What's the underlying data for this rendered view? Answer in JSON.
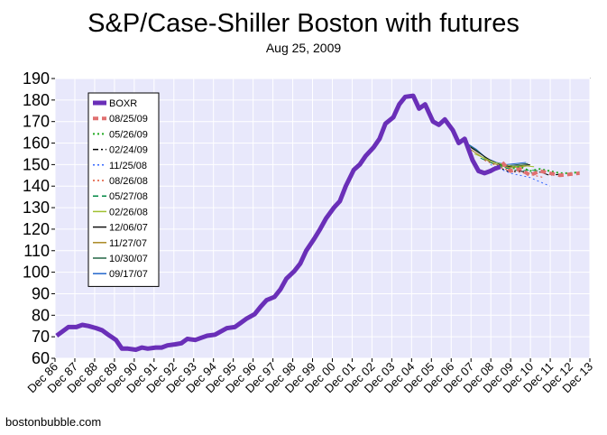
{
  "title": "S&P/Case-Shiller Boston with futures",
  "subtitle": "Aug 25, 2009",
  "source": "bostonbubble.com",
  "chart_data": {
    "type": "line",
    "title": "S&P/Case-Shiller Boston with futures",
    "subtitle": "Aug 25, 2009",
    "xlabel": "",
    "ylabel": "",
    "xlim": [
      1986.92,
      2013.92
    ],
    "ylim": [
      60,
      190
    ],
    "y_ticks": [
      60,
      70,
      80,
      90,
      100,
      110,
      120,
      130,
      140,
      150,
      160,
      170,
      180,
      190
    ],
    "x_ticks": [
      {
        "label": "Dec 86",
        "x": 1986.92
      },
      {
        "label": "Dec 87",
        "x": 1987.92
      },
      {
        "label": "Dec 88",
        "x": 1988.92
      },
      {
        "label": "Dec 89",
        "x": 1989.92
      },
      {
        "label": "Dec 90",
        "x": 1990.92
      },
      {
        "label": "Dec 91",
        "x": 1991.92
      },
      {
        "label": "Dec 92",
        "x": 1992.92
      },
      {
        "label": "Dec 93",
        "x": 1993.92
      },
      {
        "label": "Dec 94",
        "x": 1994.92
      },
      {
        "label": "Dec 95",
        "x": 1995.92
      },
      {
        "label": "Dec 96",
        "x": 1996.92
      },
      {
        "label": "Dec 97",
        "x": 1997.92
      },
      {
        "label": "Dec 98",
        "x": 1998.92
      },
      {
        "label": "Dec 99",
        "x": 1999.92
      },
      {
        "label": "Dec 00",
        "x": 2000.92
      },
      {
        "label": "Dec 01",
        "x": 2001.92
      },
      {
        "label": "Dec 02",
        "x": 2002.92
      },
      {
        "label": "Dec 03",
        "x": 2003.92
      },
      {
        "label": "Dec 04",
        "x": 2004.92
      },
      {
        "label": "Dec 05",
        "x": 2005.92
      },
      {
        "label": "Dec 06",
        "x": 2006.92
      },
      {
        "label": "Dec 07",
        "x": 2007.92
      },
      {
        "label": "Dec 08",
        "x": 2008.92
      },
      {
        "label": "Dec 09",
        "x": 2009.92
      },
      {
        "label": "Dec 10",
        "x": 2010.92
      },
      {
        "label": "Dec 11",
        "x": 2011.92
      },
      {
        "label": "Dec 12",
        "x": 2012.92
      },
      {
        "label": "Dec 13",
        "x": 2013.92
      }
    ],
    "grid": true,
    "legend_position": "top-left",
    "series": [
      {
        "name": "BOXR",
        "color": "#6a2fb8",
        "style": "solid",
        "width": 5,
        "x": [
          1987.0,
          1987.3,
          1987.6,
          1988.0,
          1988.3,
          1988.6,
          1989.0,
          1989.3,
          1989.6,
          1990.0,
          1990.3,
          1990.6,
          1991.0,
          1991.3,
          1991.6,
          1992.0,
          1992.3,
          1992.6,
          1993.0,
          1993.3,
          1993.6,
          1994.0,
          1994.3,
          1994.6,
          1995.0,
          1995.3,
          1995.6,
          1996.0,
          1996.3,
          1996.6,
          1997.0,
          1997.3,
          1997.6,
          1998.0,
          1998.3,
          1998.6,
          1999.0,
          1999.3,
          1999.6,
          2000.0,
          2000.3,
          2000.6,
          2001.0,
          2001.3,
          2001.6,
          2002.0,
          2002.3,
          2002.6,
          2003.0,
          2003.3,
          2003.6,
          2004.0,
          2004.3,
          2004.6,
          2005.0,
          2005.3,
          2005.6,
          2006.0,
          2006.3,
          2006.6,
          2007.0,
          2007.3,
          2007.6,
          2008.0,
          2008.3,
          2008.6,
          2008.9,
          2009.1,
          2009.4
        ],
        "y": [
          70.5,
          72.5,
          74.5,
          74.5,
          75.5,
          75.0,
          74.0,
          73.0,
          71.0,
          68.5,
          64.5,
          64.5,
          64.0,
          65.0,
          64.5,
          65.0,
          65.0,
          66.0,
          66.5,
          67.0,
          69.0,
          68.5,
          69.5,
          70.5,
          71.0,
          72.5,
          74.0,
          74.5,
          76.5,
          78.5,
          80.5,
          84.0,
          87.0,
          88.5,
          92.0,
          97.0,
          100.5,
          104.0,
          110.0,
          115.5,
          120.0,
          125.0,
          130.0,
          133.0,
          140.0,
          147.5,
          150.0,
          154.0,
          158.0,
          162.0,
          169.0,
          172.0,
          178.0,
          181.5,
          182.0,
          176.0,
          178.0,
          170.0,
          168.5,
          171.0,
          166.0,
          160.0,
          162.0,
          152.0,
          147.0,
          146.0,
          147.0,
          148.0,
          149.0
        ]
      },
      {
        "name": "08/25/09",
        "color": "#e07070",
        "style": "dashed",
        "width": 4,
        "x": [
          2009.5,
          2009.9,
          2010.4,
          2010.9,
          2011.4,
          2011.9,
          2012.4,
          2012.9,
          2013.4
        ],
        "y": [
          151.0,
          147.0,
          148.0,
          145.0,
          147.0,
          146.0,
          145.0,
          145.5,
          146.0
        ]
      },
      {
        "name": "05/26/09",
        "color": "#22aa22",
        "style": "dotted",
        "width": 2,
        "x": [
          2009.4,
          2009.9,
          2010.4,
          2010.9,
          2011.4,
          2011.9,
          2012.4,
          2012.9,
          2013.4
        ],
        "y": [
          150.0,
          148.0,
          149.0,
          147.0,
          148.0,
          147.0,
          146.0,
          146.0,
          146.5
        ]
      },
      {
        "name": "02/24/09",
        "color": "#000000",
        "style": "dash-dot",
        "width": 1,
        "x": [
          2009.1,
          2009.5,
          2009.9,
          2010.4,
          2010.9,
          2011.4,
          2011.9,
          2012.4
        ],
        "y": [
          149.0,
          148.0,
          146.5,
          147.0,
          146.0,
          146.5,
          145.0,
          145.5
        ]
      },
      {
        "name": "11/25/08",
        "color": "#3366ff",
        "style": "dotted",
        "width": 1,
        "x": [
          2008.9,
          2009.4,
          2009.9,
          2010.4,
          2010.9,
          2011.4,
          2011.9
        ],
        "y": [
          150.0,
          148.0,
          146.0,
          145.0,
          144.0,
          142.0,
          140.0
        ]
      },
      {
        "name": "08/26/08",
        "color": "#e05030",
        "style": "dotted",
        "width": 1,
        "x": [
          2008.6,
          2009.1,
          2009.6,
          2010.1,
          2010.6,
          2011.1,
          2011.6
        ],
        "y": [
          152.0,
          150.0,
          148.0,
          147.0,
          146.0,
          145.0,
          144.0
        ]
      },
      {
        "name": "05/27/08",
        "color": "#008844",
        "style": "dashed",
        "width": 1,
        "x": [
          2008.4,
          2008.9,
          2009.4,
          2009.9,
          2010.4,
          2010.9,
          2011.4
        ],
        "y": [
          153.0,
          151.0,
          149.0,
          148.0,
          147.0,
          147.5,
          147.0
        ]
      },
      {
        "name": "02/26/08",
        "color": "#a0c030",
        "style": "solid",
        "width": 1,
        "x": [
          2008.1,
          2008.6,
          2009.1,
          2009.6,
          2010.1,
          2010.6,
          2011.1
        ],
        "y": [
          155.0,
          153.0,
          151.0,
          150.0,
          149.0,
          149.5,
          149.0
        ]
      },
      {
        "name": "12/06/07",
        "color": "#111111",
        "style": "solid",
        "width": 1,
        "x": [
          2007.9,
          2008.4,
          2008.9,
          2009.4,
          2009.9,
          2010.4,
          2010.9
        ],
        "y": [
          158.0,
          155.0,
          152.0,
          150.0,
          149.0,
          149.5,
          150.0
        ]
      },
      {
        "name": "11/27/07",
        "color": "#aa8822",
        "style": "solid",
        "width": 1,
        "x": [
          2007.9,
          2008.4,
          2008.9,
          2009.4,
          2009.9,
          2010.4,
          2010.9
        ],
        "y": [
          157.0,
          154.0,
          151.0,
          149.5,
          148.5,
          149.0,
          149.5
        ]
      },
      {
        "name": "10/30/07",
        "color": "#226644",
        "style": "solid",
        "width": 1,
        "x": [
          2007.8,
          2008.3,
          2008.8,
          2009.3,
          2009.8,
          2010.3,
          2010.8
        ],
        "y": [
          159.0,
          156.0,
          152.0,
          150.5,
          149.5,
          150.0,
          150.5
        ]
      },
      {
        "name": "09/17/07",
        "color": "#2266cc",
        "style": "solid",
        "width": 1,
        "x": [
          2007.7,
          2008.2,
          2008.7,
          2009.2,
          2009.7,
          2010.2,
          2010.7
        ],
        "y": [
          160.0,
          157.0,
          153.0,
          151.0,
          150.0,
          150.5,
          151.0
        ]
      }
    ]
  }
}
